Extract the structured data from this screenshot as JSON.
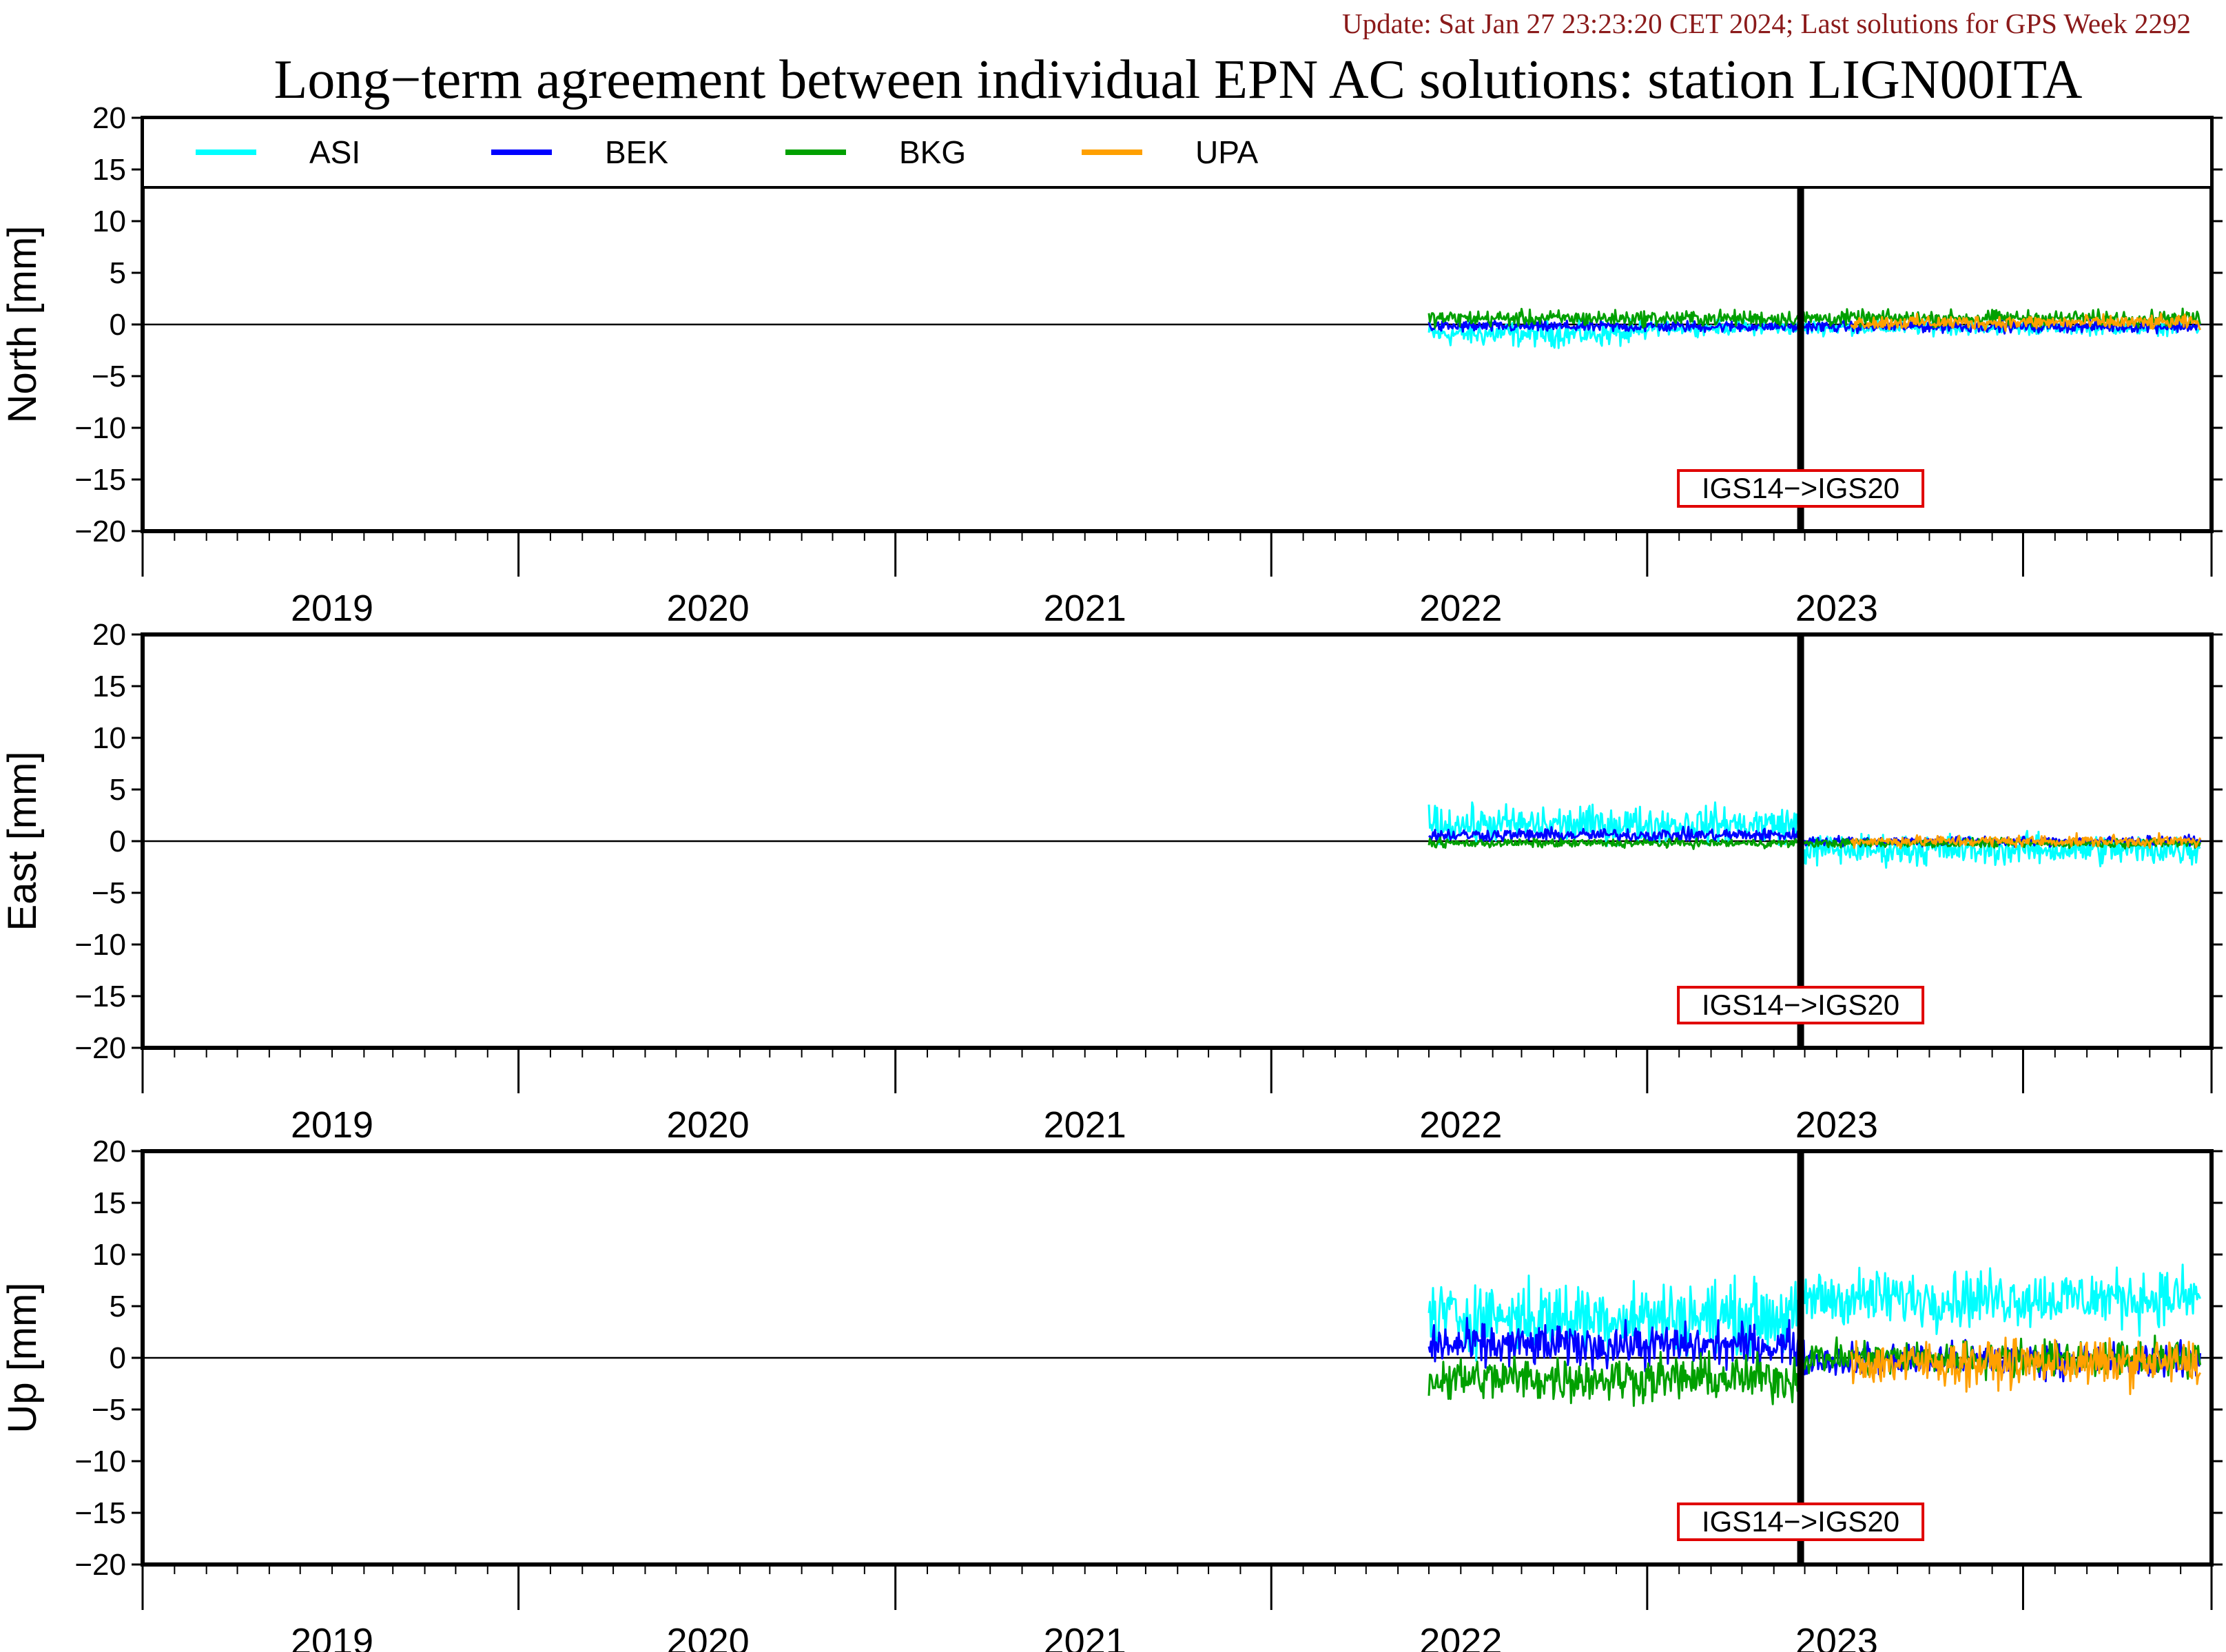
{
  "update_text": "Update: Sat Jan 27 23:23:20 CET 2024; Last solutions for GPS Week 2292",
  "chart_data": {
    "type": "line",
    "title": "Long−term agreement between individual EPN AC solutions: station LIGN00ITA",
    "legend_position": "top",
    "legend": [
      "ASI",
      "BEK",
      "BKG",
      "UPA"
    ],
    "colors": {
      "ASI": "#00ffff",
      "BEK": "#0000ff",
      "BKG": "#00a000",
      "UPA": "#ffa000",
      "annotation_border": "#e00000",
      "frame": "#000000"
    },
    "xlim": [
      "2018-07-01",
      "2023-12-31"
    ],
    "x_tick_labels": [
      "2019",
      "2020",
      "2021",
      "2022",
      "2023"
    ],
    "ylim": [
      -20,
      20
    ],
    "y_tick_labels": [
      "20",
      "15",
      "10",
      "5",
      "0",
      "−5",
      "−10",
      "−15",
      "−20"
    ],
    "grid": false,
    "annotation": {
      "text": "IGS14−>IGS20",
      "date": "2022-11-27"
    },
    "panels": [
      {
        "ylabel": "North [mm]",
        "series": [
          {
            "name": "ASI",
            "start": "2021-12-01",
            "end": "2023-12-20",
            "mean": -0.5,
            "amplitude": 1.4,
            "segments": [
              [
                "2021-12-01",
                "2022-06-30",
                -0.9,
                1.8
              ],
              [
                "2022-07-01",
                "2023-12-20",
                -0.3,
                1.0
              ]
            ]
          },
          {
            "name": "BEK",
            "start": "2021-12-01",
            "end": "2023-12-20",
            "mean": -0.2,
            "amplitude": 0.8,
            "segments": [
              [
                "2021-12-01",
                "2023-12-20",
                -0.2,
                0.8
              ]
            ]
          },
          {
            "name": "BKG",
            "start": "2021-12-01",
            "end": "2023-12-20",
            "mean": 0.6,
            "amplitude": 1.1,
            "segments": [
              [
                "2021-12-01",
                "2023-12-20",
                0.6,
                1.1
              ]
            ]
          },
          {
            "name": "UPA",
            "start": "2023-01-15",
            "end": "2023-12-20",
            "mean": 0.2,
            "amplitude": 1.0,
            "segments": [
              [
                "2023-01-15",
                "2023-12-20",
                0.2,
                1.0
              ]
            ]
          }
        ]
      },
      {
        "ylabel": "East [mm]",
        "series": [
          {
            "name": "ASI",
            "start": "2021-12-01",
            "end": "2023-12-20",
            "mean": 0.3,
            "amplitude": 2.6,
            "segments": [
              [
                "2021-12-01",
                "2022-11-27",
                1.6,
                2.6
              ],
              [
                "2022-11-28",
                "2023-12-20",
                -0.8,
                2.2
              ]
            ]
          },
          {
            "name": "BEK",
            "start": "2021-12-01",
            "end": "2023-12-20",
            "mean": 0.2,
            "amplitude": 0.8,
            "segments": [
              [
                "2021-12-01",
                "2022-11-27",
                0.6,
                0.9
              ],
              [
                "2022-11-28",
                "2023-12-20",
                0.0,
                0.7
              ]
            ]
          },
          {
            "name": "BKG",
            "start": "2021-12-01",
            "end": "2023-12-20",
            "mean": -0.2,
            "amplitude": 0.6,
            "segments": [
              [
                "2021-12-01",
                "2023-12-20",
                -0.2,
                0.6
              ]
            ]
          },
          {
            "name": "UPA",
            "start": "2023-01-15",
            "end": "2023-12-20",
            "mean": 0.0,
            "amplitude": 0.8,
            "segments": [
              [
                "2023-01-15",
                "2023-12-20",
                0.0,
                0.8
              ]
            ]
          }
        ]
      },
      {
        "ylabel": "Up [mm]",
        "series": [
          {
            "name": "ASI",
            "start": "2021-12-01",
            "end": "2023-12-20",
            "mean": 5.0,
            "amplitude": 4.5,
            "segments": [
              [
                "2021-12-01",
                "2022-11-27",
                4.0,
                5.0
              ],
              [
                "2022-11-28",
                "2023-12-20",
                5.8,
                4.0
              ]
            ]
          },
          {
            "name": "BEK",
            "start": "2021-12-01",
            "end": "2023-12-20",
            "mean": 0.5,
            "amplitude": 2.8,
            "segments": [
              [
                "2021-12-01",
                "2022-11-27",
                1.2,
                3.0
              ],
              [
                "2022-11-28",
                "2023-12-20",
                -0.2,
                2.4
              ]
            ]
          },
          {
            "name": "BKG",
            "start": "2021-12-01",
            "end": "2023-12-20",
            "mean": -1.0,
            "amplitude": 3.0,
            "segments": [
              [
                "2021-12-01",
                "2022-11-27",
                -2.0,
                3.2
              ],
              [
                "2022-11-28",
                "2023-12-20",
                0.0,
                2.5
              ]
            ]
          },
          {
            "name": "UPA",
            "start": "2023-01-15",
            "end": "2023-12-20",
            "mean": -0.5,
            "amplitude": 3.2,
            "segments": [
              [
                "2023-01-15",
                "2023-12-20",
                -0.5,
                3.2
              ]
            ]
          }
        ]
      }
    ]
  }
}
